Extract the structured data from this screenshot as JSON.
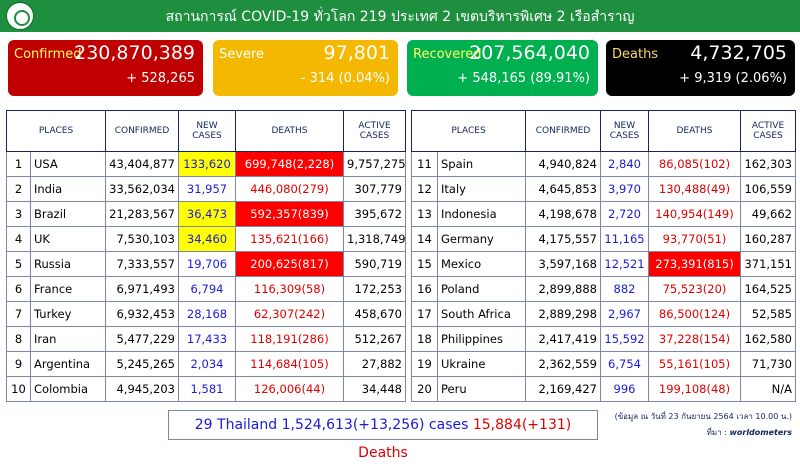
{
  "header": {
    "title": "สถานการณ์ COVID-19 ทั่วโลก 219 ประเทศ 2 เขตบริหารพิเศษ 2 เรือสำราญ"
  },
  "cards": [
    {
      "label": "Confirmed",
      "value": "230,870,389",
      "change": "+ 528,265",
      "color": "#c00000"
    },
    {
      "label": "Severe",
      "value": "97,801",
      "change": "- 314 (0.04%)",
      "color": "#f5b800"
    },
    {
      "label": "Recovered",
      "value": "207,564,040",
      "change": "+ 548,165 (89.91%)",
      "color": "#00b050"
    },
    {
      "label": "Deaths",
      "value": "4,732,705",
      "change": "+ 9,319 (2.06%)",
      "color": "#000000"
    }
  ],
  "table": {
    "headers": [
      "PLACES",
      "CONFIRMED",
      "NEW CASES",
      "DEATHS",
      "ACTIVE CASES"
    ],
    "highlight_colors": {
      "new": "#ffff00",
      "deaths": "#ff0000"
    },
    "left": [
      {
        "cells": [
          "1",
          "USA",
          "43,404,877",
          "133,620",
          "699,748(2,228)",
          "9,757,275"
        ],
        "highlight_new": true,
        "highlight_deaths": true
      },
      {
        "cells": [
          "2",
          "India",
          "33,562,034",
          "31,957",
          "446,080(279)",
          "307,779"
        ]
      },
      {
        "cells": [
          "3",
          "Brazil",
          "21,283,567",
          "36,473",
          "592,357(839)",
          "395,672"
        ],
        "highlight_new": true,
        "highlight_deaths": true
      },
      {
        "cells": [
          "4",
          "UK",
          "7,530,103",
          "34,460",
          "135,621(166)",
          "1,318,749"
        ],
        "highlight_new": true
      },
      {
        "cells": [
          "5",
          "Russia",
          "7,333,557",
          "19,706",
          "200,625(817)",
          "590,719"
        ],
        "highlight_deaths": true
      },
      {
        "cells": [
          "6",
          "France",
          "6,971,493",
          "6,794",
          "116,309(58)",
          "172,253"
        ]
      },
      {
        "cells": [
          "7",
          "Turkey",
          "6,932,453",
          "28,168",
          "62,307(242)",
          "458,670"
        ]
      },
      {
        "cells": [
          "8",
          "Iran",
          "5,477,229",
          "17,433",
          "118,191(286)",
          "512,267"
        ]
      },
      {
        "cells": [
          "9",
          "Argentina",
          "5,245,265",
          "2,034",
          "114,684(105)",
          "27,882"
        ]
      },
      {
        "cells": [
          "10",
          "Colombia",
          "4,945,203",
          "1,581",
          "126,006(44)",
          "34,448"
        ]
      }
    ],
    "right": [
      {
        "cells": [
          "11",
          "Spain",
          "4,940,824",
          "2,840",
          "86,085(102)",
          "162,303"
        ]
      },
      {
        "cells": [
          "12",
          "Italy",
          "4,645,853",
          "3,970",
          "130,488(49)",
          "106,559"
        ]
      },
      {
        "cells": [
          "13",
          "Indonesia",
          "4,198,678",
          "2,720",
          "140,954(149)",
          "49,662"
        ]
      },
      {
        "cells": [
          "14",
          "Germany",
          "4,175,557",
          "11,165",
          "93,770(51)",
          "160,287"
        ]
      },
      {
        "cells": [
          "15",
          "Mexico",
          "3,597,168",
          "12,521",
          "273,391(815)",
          "371,151"
        ],
        "highlight_deaths": true
      },
      {
        "cells": [
          "16",
          "Poland",
          "2,899,888",
          "882",
          "75,523(20)",
          "164,525"
        ]
      },
      {
        "cells": [
          "17",
          "South Africa",
          "2,889,298",
          "2,967",
          "86,500(124)",
          "52,585"
        ]
      },
      {
        "cells": [
          "18",
          "Philippines",
          "2,417,419",
          "15,592",
          "37,228(154)",
          "162,580"
        ]
      },
      {
        "cells": [
          "19",
          "Ukraine",
          "2,362,559",
          "6,754",
          "55,161(105)",
          "71,730"
        ]
      },
      {
        "cells": [
          "20",
          "Peru",
          "2,169,427",
          "996",
          "199,108(48)",
          "N/A"
        ]
      }
    ]
  },
  "footer": {
    "thailand_cases": "29 Thailand 1,524,613(+13,256) cases",
    "thailand_deaths": "15,884(+131) Deaths",
    "note": "(ข้อมูล ณ วันที่ 23 กันยายน 2564 เวลา 10.00 น.)",
    "source_label": "ที่มา :",
    "source": "worldometers"
  }
}
